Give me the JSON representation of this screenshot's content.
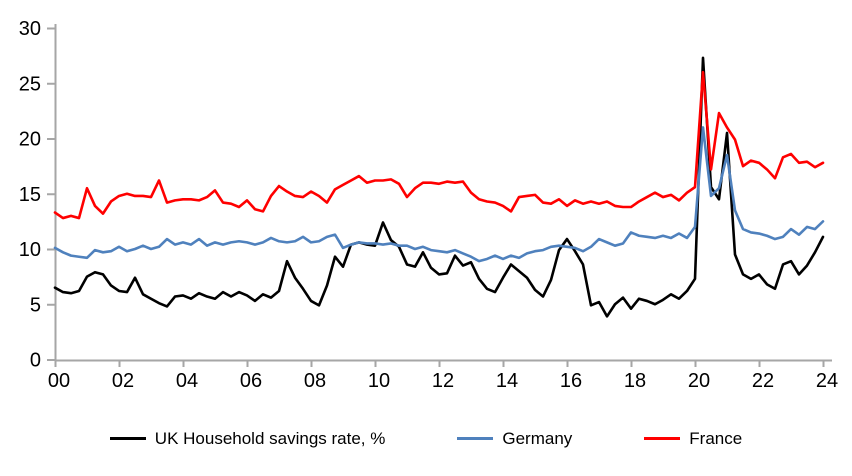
{
  "chart_data": {
    "type": "line",
    "title": "",
    "frequency": "quarterly",
    "x_start": "2000Q1",
    "x_end": "2024Q1",
    "x_axis_tick_labels": [
      "00",
      "02",
      "04",
      "06",
      "08",
      "10",
      "12",
      "14",
      "16",
      "18",
      "20",
      "22",
      "24"
    ],
    "y_axis_ticks": [
      0,
      5,
      10,
      15,
      20,
      25,
      30
    ],
    "ylim": [
      0,
      30
    ],
    "grid": false,
    "legend_position": "bottom",
    "axis_color": "#A6A6A6",
    "series": [
      {
        "name": "UK Household savings rate, %",
        "color": "#000000",
        "values": [
          6.5,
          6.1,
          6.0,
          6.2,
          7.5,
          7.9,
          7.7,
          6.7,
          6.2,
          6.1,
          7.4,
          5.9,
          5.5,
          5.1,
          4.8,
          5.7,
          5.8,
          5.5,
          6.0,
          5.7,
          5.5,
          6.1,
          5.7,
          6.1,
          5.8,
          5.3,
          5.9,
          5.6,
          6.2,
          8.9,
          7.4,
          6.4,
          5.3,
          4.9,
          6.7,
          9.3,
          8.4,
          10.4,
          10.6,
          10.4,
          10.3,
          12.4,
          10.8,
          10.2,
          8.6,
          8.4,
          9.7,
          8.3,
          7.7,
          7.8,
          9.4,
          8.5,
          8.8,
          7.3,
          6.4,
          6.1,
          7.4,
          8.6,
          8.0,
          7.4,
          6.3,
          5.7,
          7.2,
          9.9,
          10.9,
          9.8,
          8.6,
          4.9,
          5.2,
          3.9,
          5.0,
          5.6,
          4.6,
          5.5,
          5.3,
          5.0,
          5.4,
          5.9,
          5.5,
          6.2,
          7.3,
          27.3,
          15.6,
          14.5,
          20.5,
          9.5,
          7.7,
          7.3,
          7.7,
          6.8,
          6.4,
          8.6,
          8.9,
          7.7,
          8.5,
          9.7,
          11.1
        ]
      },
      {
        "name": "Germany",
        "color": "#4F81BD",
        "values": [
          10.1,
          9.7,
          9.4,
          9.3,
          9.2,
          9.9,
          9.7,
          9.8,
          10.2,
          9.8,
          10.0,
          10.3,
          10.0,
          10.2,
          10.9,
          10.4,
          10.6,
          10.4,
          10.9,
          10.3,
          10.6,
          10.4,
          10.6,
          10.7,
          10.6,
          10.4,
          10.6,
          11.0,
          10.7,
          10.6,
          10.7,
          11.1,
          10.6,
          10.7,
          11.1,
          11.3,
          10.1,
          10.4,
          10.6,
          10.5,
          10.5,
          10.4,
          10.5,
          10.3,
          10.3,
          10.0,
          10.2,
          9.9,
          9.8,
          9.7,
          9.9,
          9.6,
          9.3,
          8.9,
          9.1,
          9.4,
          9.1,
          9.4,
          9.2,
          9.6,
          9.8,
          9.9,
          10.2,
          10.3,
          10.2,
          10.1,
          9.8,
          10.2,
          10.9,
          10.6,
          10.3,
          10.5,
          11.5,
          11.2,
          11.1,
          11.0,
          11.2,
          11.0,
          11.4,
          11.0,
          12.0,
          21.0,
          14.8,
          15.5,
          18.5,
          13.5,
          11.8,
          11.5,
          11.4,
          11.2,
          10.9,
          11.1,
          11.8,
          11.3,
          12.0,
          11.8,
          12.5
        ]
      },
      {
        "name": "France",
        "color": "#FF0000",
        "values": [
          13.3,
          12.8,
          13.0,
          12.8,
          15.5,
          13.9,
          13.2,
          14.3,
          14.8,
          15.0,
          14.8,
          14.8,
          14.7,
          16.2,
          14.2,
          14.4,
          14.5,
          14.5,
          14.4,
          14.7,
          15.3,
          14.2,
          14.1,
          13.8,
          14.4,
          13.6,
          13.4,
          14.8,
          15.7,
          15.2,
          14.8,
          14.7,
          15.2,
          14.8,
          14.2,
          15.4,
          15.8,
          16.2,
          16.6,
          16.0,
          16.2,
          16.2,
          16.3,
          15.9,
          14.7,
          15.5,
          16.0,
          16.0,
          15.9,
          16.1,
          16.0,
          16.1,
          15.1,
          14.5,
          14.3,
          14.2,
          13.9,
          13.4,
          14.7,
          14.8,
          14.9,
          14.2,
          14.1,
          14.5,
          13.9,
          14.4,
          14.1,
          14.3,
          14.1,
          14.3,
          13.9,
          13.8,
          13.8,
          14.3,
          14.7,
          15.1,
          14.7,
          14.9,
          14.4,
          15.1,
          15.6,
          26.0,
          17.2,
          22.3,
          21.0,
          19.9,
          17.5,
          18.0,
          17.8,
          17.2,
          16.4,
          18.3,
          18.6,
          17.8,
          17.9,
          17.4,
          17.8
        ]
      }
    ]
  },
  "legend": {
    "items": [
      {
        "label": "UK Household savings rate, %",
        "color": "#000000"
      },
      {
        "label": "Germany",
        "color": "#4F81BD"
      },
      {
        "label": "France",
        "color": "#FF0000"
      }
    ]
  }
}
